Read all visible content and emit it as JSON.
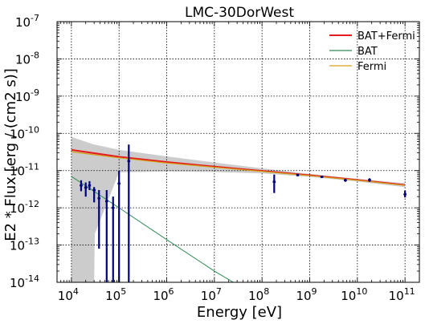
{
  "chart_data": {
    "type": "line",
    "title": "LMC-30DorWest",
    "xlabel": "Energy [eV]",
    "ylabel": "E2 * Flux [erg / (cm2 s)]",
    "xscale": "log",
    "yscale": "log",
    "xlim": [
      5000,
      200000000000
    ],
    "ylim": [
      1e-14,
      1e-07
    ],
    "grid": true,
    "legend_position": "top-right",
    "x_tick_exponents": [
      "4",
      "5",
      "6",
      "7",
      "8",
      "9",
      "10",
      "11"
    ],
    "y_tick_exponents": [
      "-14",
      "-13",
      "-12",
      "-11",
      "-10",
      "-9",
      "-8",
      "-7"
    ],
    "tick_base": "10",
    "legend": [
      {
        "label": "BAT+Fermi",
        "color": "#e41a1c"
      },
      {
        "label": "BAT",
        "color": "#2e8b57"
      },
      {
        "label": "Fermi",
        "color": "#d4a017"
      }
    ],
    "series": [
      {
        "name": "BAT+Fermi",
        "color": "#e41a1c",
        "x": [
          10000,
          100000,
          1000000,
          10000000,
          100000000,
          1000000000,
          10000000000,
          100000000000
        ],
        "y": [
          3.6e-11,
          2.35e-11,
          1.7e-11,
          1.28e-11,
          9.8e-12,
          7.5e-12,
          5.6e-12,
          4.1e-12
        ]
      },
      {
        "name": "BAT",
        "color": "#2e8b57",
        "x": [
          10000,
          100000,
          1000000,
          10000000,
          25000000
        ],
        "y": [
          7e-12,
          1e-12,
          1.4e-13,
          2e-14,
          1e-14
        ]
      },
      {
        "name": "Fermi",
        "color": "#d4a017",
        "x": [
          10000,
          100000,
          1000000,
          10000000,
          100000000,
          1000000000,
          10000000000,
          100000000000
        ],
        "y": [
          3.2e-11,
          2.2e-11,
          1.6e-11,
          1.23e-11,
          9.5e-12,
          7.3e-12,
          5.5e-12,
          4e-12
        ]
      }
    ],
    "uncertainty_band": {
      "x": [
        10000,
        30000,
        31000,
        100000,
        1000000,
        10000000,
        100000000,
        1000000000,
        10000000000,
        100000000000
      ],
      "upper": [
        8e-11,
        5e-11,
        5e-11,
        3.6e-11,
        2.4e-11,
        1.65e-11,
        1.15e-11,
        8.2e-12,
        6e-12,
        4.6e-12
      ],
      "lower": [
        1e-14,
        1e-14,
        2e-13,
        9e-12,
        9.5e-12,
        9.2e-12,
        8.4e-12,
        6.8e-12,
        5.1e-12,
        3.6e-12
      ],
      "color": "#cccccc"
    },
    "data_points": {
      "color": "#00007f",
      "points": [
        {
          "x": 16000,
          "y": 4e-12,
          "ylo": 2.8e-12,
          "yhi": 5.5e-12
        },
        {
          "x": 20000,
          "y": 3.5e-12,
          "ylo": 2e-12,
          "yhi": 4.8e-12
        },
        {
          "x": 24000,
          "y": 4e-12,
          "ylo": 3e-12,
          "yhi": 5.2e-12
        },
        {
          "x": 30000,
          "y": 3e-12,
          "ylo": 1.4e-12,
          "yhi": 3.6e-12
        },
        {
          "x": 38000,
          "y": 1.8e-12,
          "ylo": 8e-14,
          "yhi": 3e-12
        },
        {
          "x": 55000,
          "y": 1.5e-12,
          "ylo": 1e-14,
          "yhi": 3e-12
        },
        {
          "x": 75000,
          "y": 1e-12,
          "ylo": 1e-14,
          "yhi": 2e-12
        },
        {
          "x": 100000,
          "y": 4.5e-12,
          "ylo": 1e-14,
          "yhi": 1e-11
        },
        {
          "x": 160000,
          "y": 1.8e-11,
          "ylo": 1e-14,
          "yhi": 5e-11
        },
        {
          "x": 180000000,
          "y": 5e-12,
          "ylo": 2.5e-12,
          "yhi": 7.8e-12
        },
        {
          "x": 560000000,
          "y": 7.6e-12,
          "ylo": 7e-12,
          "yhi": 8.2e-12
        },
        {
          "x": 1800000000,
          "y": 6.8e-12,
          "ylo": 6.3e-12,
          "yhi": 7.3e-12
        },
        {
          "x": 5600000000,
          "y": 5.5e-12,
          "ylo": 5e-12,
          "yhi": 6e-12
        },
        {
          "x": 18000000000,
          "y": 5.6e-12,
          "ylo": 5e-12,
          "yhi": 6.2e-12
        },
        {
          "x": 100000000000,
          "y": 2.3e-12,
          "ylo": 1.9e-12,
          "yhi": 2.9e-12
        }
      ]
    }
  }
}
